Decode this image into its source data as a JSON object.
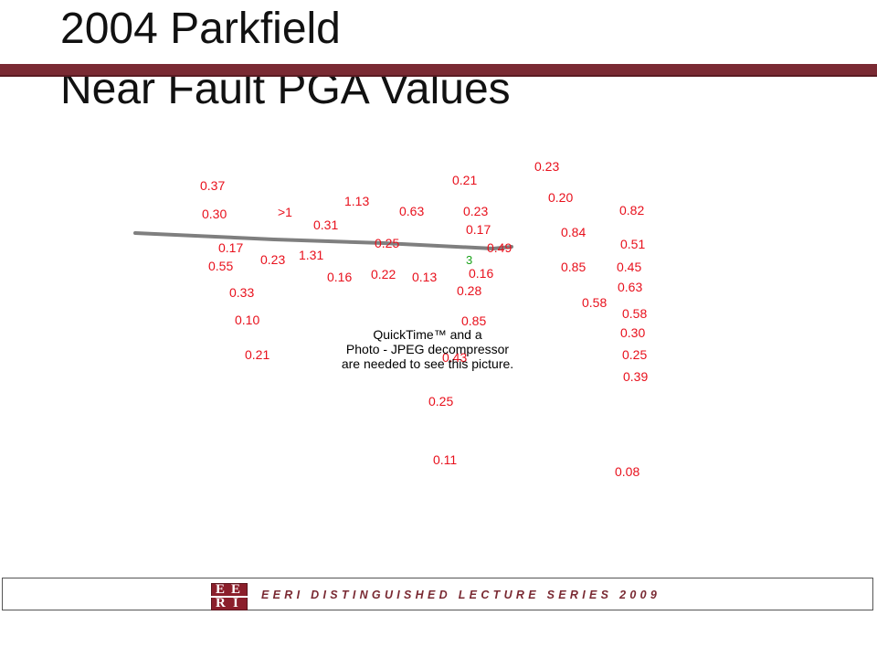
{
  "slide": {
    "title_line_1": "2004 Parkfield",
    "title_line_2": "Near Fault PGA Values",
    "accent_color": "#7a2a33",
    "value_color": "#e8101c",
    "station_color": "#1aa31a"
  },
  "pga_values": [
    "0.37",
    "0.30",
    "0.17",
    "0.55",
    "0.33",
    "0.10",
    "0.21",
    ">1",
    "0.23",
    "1.13",
    "0.31",
    "1.31",
    "0.16",
    "0.63",
    "0.25",
    "0.22",
    "0.13",
    "0.21",
    "0.23",
    "0.17",
    "0.49",
    "0.16",
    "0.28",
    "0.85",
    "0.43",
    "0.25",
    "0.11",
    "0.23",
    "0.20",
    "0.84",
    "0.85",
    "0.58",
    "0.82",
    "0.51",
    "0.45",
    "0.63",
    "0.58",
    "0.30",
    "0.25",
    "0.39",
    "0.08"
  ],
  "station_label": "3",
  "quicktime_message": {
    "line_1": "QuickTime™ and a",
    "line_2": "Photo - JPEG decompressor",
    "line_3": "are needed to see this picture."
  },
  "footer": {
    "text": "EERI DISTINGUISHED LECTURE SERIES 2009",
    "logo_letters": [
      "E",
      "E",
      "R",
      "I"
    ]
  }
}
